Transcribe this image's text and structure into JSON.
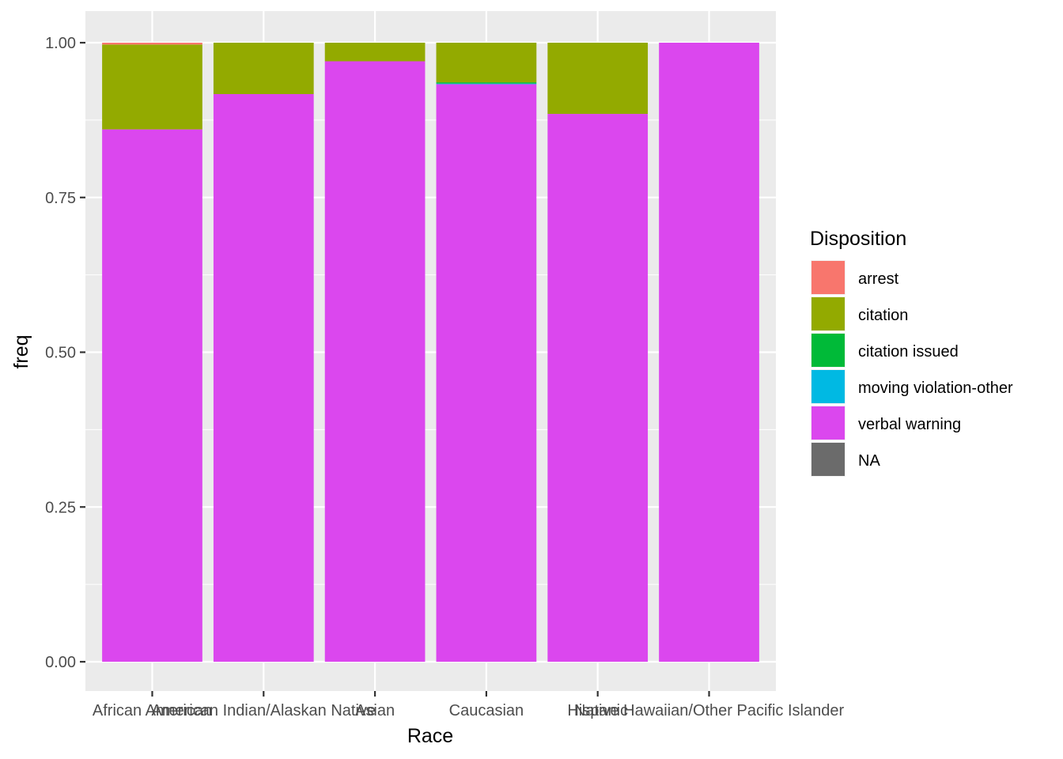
{
  "chart_data": {
    "type": "bar",
    "stacked": true,
    "xlabel": "Race",
    "ylabel": "freq",
    "ylim": [
      0,
      1
    ],
    "y_ticks": [
      "0.00",
      "0.25",
      "0.50",
      "0.75",
      "1.00"
    ],
    "grid": true,
    "legend_position": "right",
    "legend_title": "Disposition",
    "categories": [
      "African American",
      "American Indian/Alaskan Native",
      "Asian",
      "Caucasian",
      "Hispanic",
      "Native Hawaiian/Other Pacific Islander"
    ],
    "series": [
      {
        "name": "arrest",
        "color": "#F8766D",
        "values": [
          0.003,
          0,
          0,
          0,
          0,
          0
        ]
      },
      {
        "name": "citation",
        "color": "#93AA00",
        "values": [
          0.137,
          0.083,
          0.03,
          0.064,
          0.115,
          0
        ]
      },
      {
        "name": "citation  issued",
        "color": "#00BA38",
        "values": [
          0,
          0,
          0,
          0.002,
          0,
          0
        ]
      },
      {
        "name": "moving violation-other",
        "color": "#00B9E3",
        "values": [
          0,
          0,
          0,
          0.001,
          0,
          0
        ]
      },
      {
        "name": "verbal warning",
        "color": "#DB47EE",
        "values": [
          0.86,
          0.917,
          0.97,
          0.933,
          0.885,
          1.0
        ]
      },
      {
        "name": "NA",
        "color": "#6B6B6B",
        "values": [
          0,
          0,
          0,
          0,
          0,
          0
        ]
      }
    ]
  }
}
